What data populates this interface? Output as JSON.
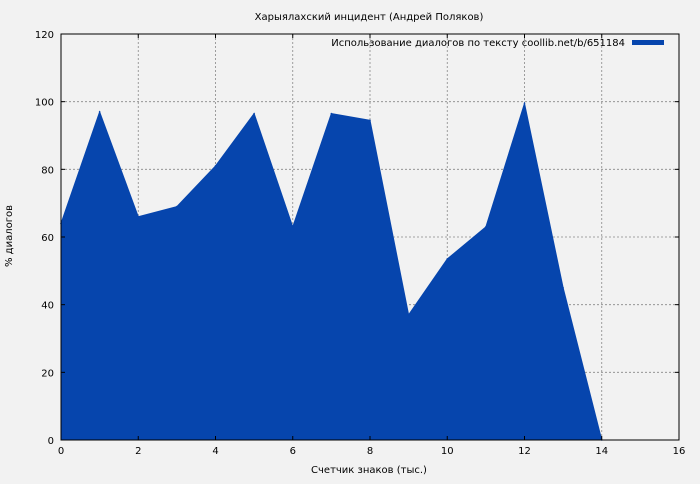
{
  "chart_data": {
    "type": "area",
    "title": "Харыялахский инцидент (Андрей Поляков)",
    "xlabel": "Счетчик знаков (тыс.)",
    "ylabel": "% диалогов",
    "xlim": [
      0,
      16
    ],
    "ylim": [
      0,
      120
    ],
    "xticks": [
      0,
      2,
      4,
      6,
      8,
      10,
      12,
      14,
      16
    ],
    "yticks": [
      0,
      20,
      40,
      60,
      80,
      100,
      120
    ],
    "grid": true,
    "legend_position": "top-right",
    "series": [
      {
        "name": "Использование диалогов по тексту coollib.net/b/651184",
        "color": "#0645ad",
        "x": [
          0,
          1,
          2,
          3,
          4,
          5,
          6,
          7,
          8,
          9,
          10,
          11,
          12,
          13,
          14
        ],
        "y": [
          64,
          97,
          66,
          69,
          81,
          96.5,
          63,
          96.5,
          94.5,
          37,
          53.5,
          63,
          99.5,
          45,
          0
        ]
      }
    ]
  }
}
